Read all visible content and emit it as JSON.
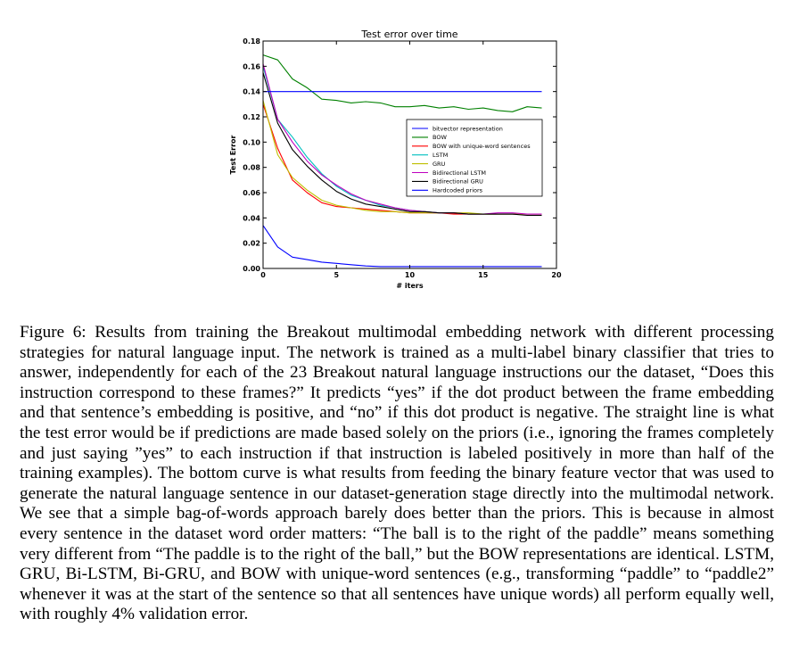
{
  "chart_data": {
    "type": "line",
    "title": "Test error over time",
    "xlabel": "# iters",
    "ylabel": "Test Error",
    "xlim": [
      0,
      20
    ],
    "ylim": [
      0,
      0.18
    ],
    "xticks": [
      0,
      5,
      10,
      15,
      20
    ],
    "yticks": [
      "0.00",
      "0.02",
      "0.04",
      "0.06",
      "0.08",
      "0.10",
      "0.12",
      "0.14",
      "0.16",
      "0.18"
    ],
    "grid": false,
    "legend_position": "right",
    "series": [
      {
        "name": "bitvector representation",
        "color": "#0000ff",
        "x": [
          0,
          1,
          2,
          3,
          4,
          5,
          6,
          7,
          8,
          9,
          10,
          11,
          12,
          13,
          14,
          15,
          16,
          17,
          18,
          19
        ],
        "y": [
          0.034,
          0.017,
          0.009,
          0.007,
          0.005,
          0.004,
          0.003,
          0.002,
          0.0015,
          0.0015,
          0.0015,
          0.0015,
          0.0015,
          0.0015,
          0.0015,
          0.0015,
          0.0015,
          0.0015,
          0.0015,
          0.0015
        ]
      },
      {
        "name": "BOW",
        "color": "#008000",
        "x": [
          0,
          1,
          2,
          3,
          4,
          5,
          6,
          7,
          8,
          9,
          10,
          11,
          12,
          13,
          14,
          15,
          16,
          17,
          18,
          19
        ],
        "y": [
          0.169,
          0.165,
          0.15,
          0.143,
          0.134,
          0.133,
          0.131,
          0.132,
          0.131,
          0.128,
          0.128,
          0.129,
          0.127,
          0.128,
          0.126,
          0.127,
          0.125,
          0.124,
          0.128,
          0.127
        ]
      },
      {
        "name": "BOW with unique-word sentences",
        "color": "#ff0000",
        "x": [
          0,
          1,
          2,
          3,
          4,
          5,
          6,
          7,
          8,
          9,
          10,
          11,
          12,
          13,
          14,
          15,
          16,
          17,
          18,
          19
        ],
        "y": [
          0.13,
          0.095,
          0.07,
          0.06,
          0.052,
          0.049,
          0.048,
          0.047,
          0.046,
          0.045,
          0.044,
          0.044,
          0.044,
          0.043,
          0.043,
          0.043,
          0.043,
          0.043,
          0.043,
          0.043
        ]
      },
      {
        "name": "LSTM",
        "color": "#00bfbf",
        "x": [
          0,
          1,
          2,
          3,
          4,
          5,
          6,
          7,
          8,
          9,
          10,
          11,
          12,
          13,
          14,
          15,
          16,
          17,
          18,
          19
        ],
        "y": [
          0.16,
          0.118,
          0.104,
          0.088,
          0.075,
          0.065,
          0.058,
          0.054,
          0.05,
          0.048,
          0.046,
          0.045,
          0.044,
          0.044,
          0.043,
          0.043,
          0.043,
          0.043,
          0.043,
          0.043
        ]
      },
      {
        "name": "GRU",
        "color": "#bfbf00",
        "x": [
          0,
          1,
          2,
          3,
          4,
          5,
          6,
          7,
          8,
          9,
          10,
          11,
          12,
          13,
          14,
          15,
          16,
          17,
          18,
          19
        ],
        "y": [
          0.133,
          0.09,
          0.072,
          0.062,
          0.054,
          0.05,
          0.048,
          0.046,
          0.045,
          0.045,
          0.044,
          0.044,
          0.044,
          0.044,
          0.044,
          0.043,
          0.043,
          0.043,
          0.043,
          0.043
        ]
      },
      {
        "name": "Bidirectional LSTM",
        "color": "#bf00bf",
        "x": [
          0,
          1,
          2,
          3,
          4,
          5,
          6,
          7,
          8,
          9,
          10,
          11,
          12,
          13,
          14,
          15,
          16,
          17,
          18,
          19
        ],
        "y": [
          0.162,
          0.118,
          0.1,
          0.085,
          0.074,
          0.066,
          0.059,
          0.054,
          0.051,
          0.048,
          0.046,
          0.045,
          0.044,
          0.044,
          0.043,
          0.043,
          0.044,
          0.044,
          0.043,
          0.043
        ]
      },
      {
        "name": "Bidirectional GRU",
        "color": "#000000",
        "x": [
          0,
          1,
          2,
          3,
          4,
          5,
          6,
          7,
          8,
          9,
          10,
          11,
          12,
          13,
          14,
          15,
          16,
          17,
          18,
          19
        ],
        "y": [
          0.155,
          0.115,
          0.094,
          0.081,
          0.07,
          0.061,
          0.055,
          0.051,
          0.049,
          0.047,
          0.045,
          0.045,
          0.044,
          0.044,
          0.043,
          0.043,
          0.043,
          0.043,
          0.042,
          0.042
        ]
      },
      {
        "name": "Hardcoded priors",
        "color": "#0000ff",
        "x": [
          0,
          1,
          2,
          3,
          4,
          5,
          6,
          7,
          8,
          9,
          10,
          11,
          12,
          13,
          14,
          15,
          16,
          17,
          18,
          19
        ],
        "y": [
          0.14,
          0.14,
          0.14,
          0.14,
          0.14,
          0.14,
          0.14,
          0.14,
          0.14,
          0.14,
          0.14,
          0.14,
          0.14,
          0.14,
          0.14,
          0.14,
          0.14,
          0.14,
          0.14,
          0.14
        ]
      }
    ]
  },
  "caption": "Figure 6: Results from training the Breakout multimodal embedding network with different processing strategies for natural language input. The network is trained as a multi-label binary classifier that tries to answer, independently for each of the 23 Breakout natural language instructions our the dataset, “Does this instruction correspond to these frames?” It predicts “yes” if the dot product between the frame embedding and that sentence’s embedding is positive, and “no” if this dot product is negative. The straight line is what the test error would be if predictions are made based solely on the priors (i.e., ignoring the frames completely and just saying ”yes” to each instruction if that instruction is labeled positively in more than half of the training examples). The bottom curve is what results from feeding the binary feature vector that was used to generate the natural language sentence in our dataset-generation stage directly into the multimodal network. We see that a simple bag-of-words approach barely does better than the priors. This is because in almost every sentence in the dataset word order matters: “The ball is to the right of the paddle” means something very different from “The paddle is to the right of the ball,” but the BOW representations are identical. LSTM, GRU, Bi-LSTM, Bi-GRU, and BOW with unique-word sentences (e.g., transforming “paddle” to “paddle2” whenever it was at the start of the sentence so that all sentences have unique words) all perform equally well, with roughly 4% validation error."
}
